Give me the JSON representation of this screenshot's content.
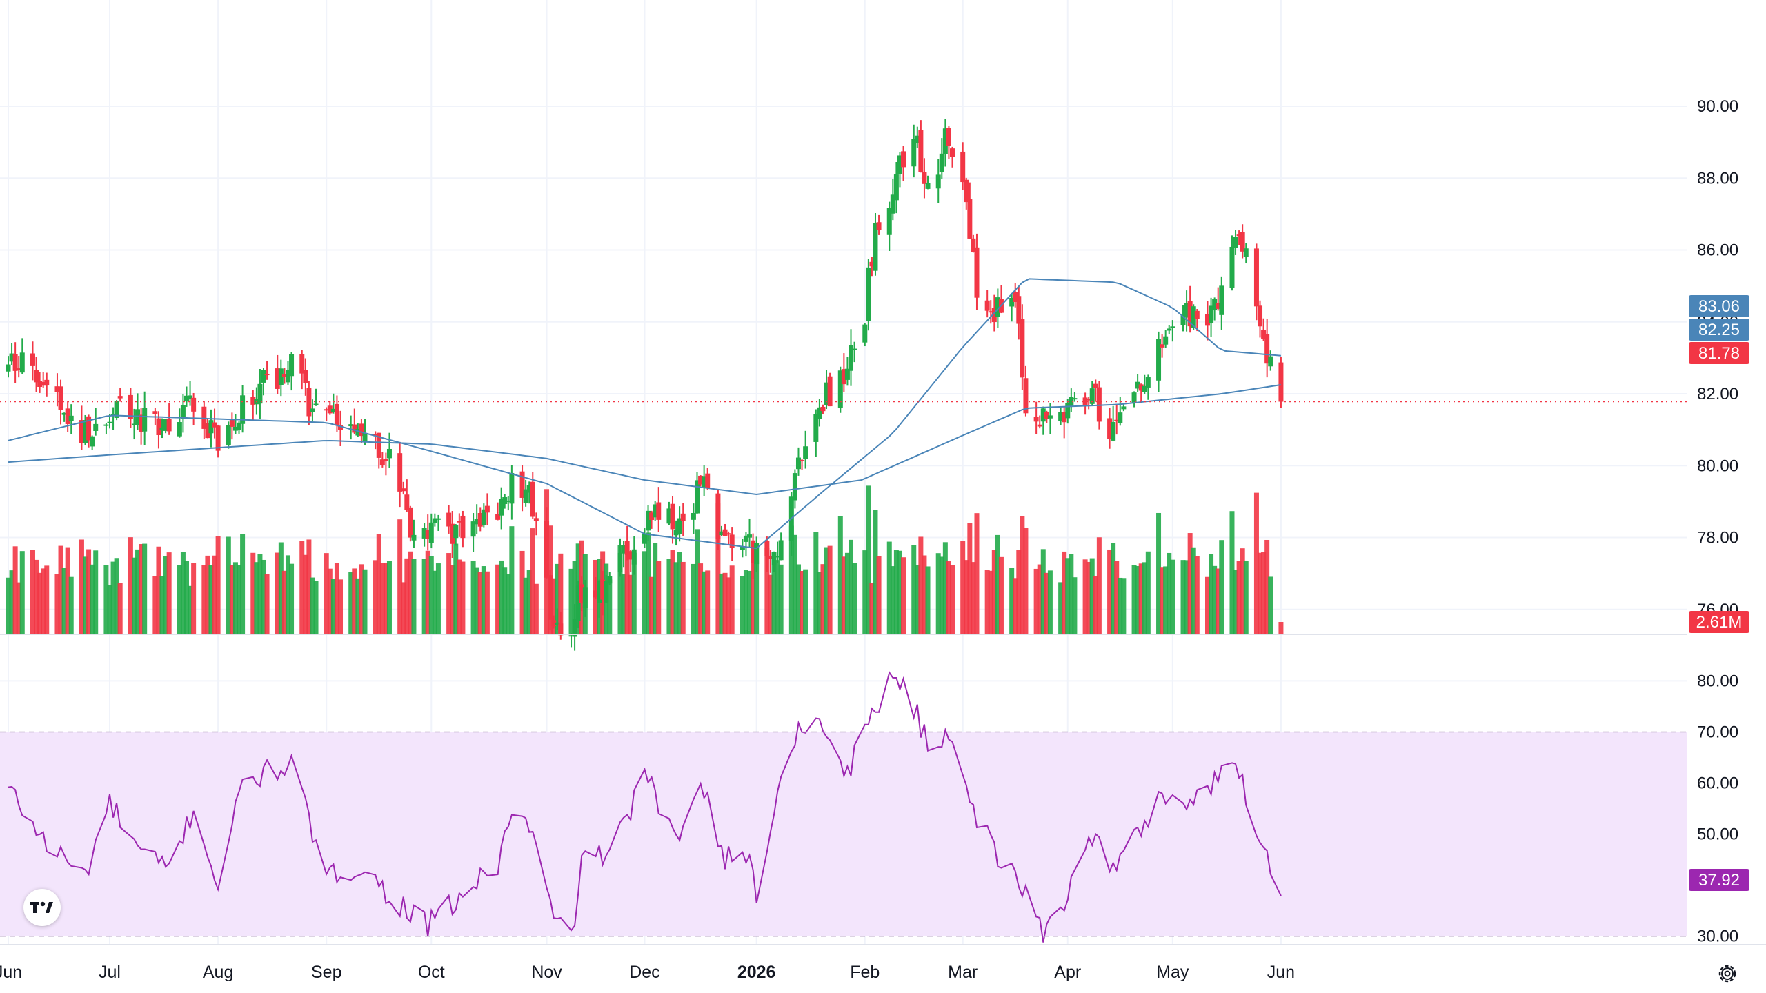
{
  "chart_data": {
    "type": "candlestick",
    "grid": true,
    "price_axis": {
      "ticks": [
        "90.00",
        "88.00",
        "86.00",
        "84.00",
        "82.00",
        "80.00",
        "78.00",
        "76.00"
      ],
      "range": [
        74.25,
        91.9
      ]
    },
    "rsi_axis": {
      "ticks": [
        "80.00",
        "70.00",
        "60.00",
        "50.00",
        "40.00",
        "30.00"
      ],
      "range": [
        27.4,
        83.7
      ],
      "band": [
        30,
        70
      ]
    },
    "x_labels": [
      {
        "label": "Jun",
        "date": "2025-06-02",
        "bold": false
      },
      {
        "label": "Jul",
        "date": "2025-07-01",
        "bold": false
      },
      {
        "label": "Aug",
        "date": "2025-08-01",
        "bold": false
      },
      {
        "label": "Sep",
        "date": "2025-09-01",
        "bold": false
      },
      {
        "label": "Oct",
        "date": "2025-10-01",
        "bold": false
      },
      {
        "label": "Nov",
        "date": "2025-11-03",
        "bold": false
      },
      {
        "label": "Dec",
        "date": "2025-12-01",
        "bold": false
      },
      {
        "label": "2026",
        "date": "2026-01-02",
        "bold": true
      },
      {
        "label": "Feb",
        "date": "2026-02-02",
        "bold": false
      },
      {
        "label": "Mar",
        "date": "2026-03-02",
        "bold": false
      },
      {
        "label": "Apr",
        "date": "2026-04-01",
        "bold": false
      },
      {
        "label": "May",
        "date": "2026-05-01",
        "bold": false
      },
      {
        "label": "Jun",
        "date": "2026-06-01",
        "bold": false
      }
    ],
    "close_path": [
      [
        "2025-06-02",
        82.9
      ],
      [
        "2025-06-10",
        82.5
      ],
      [
        "2025-06-18",
        81.4
      ],
      [
        "2025-06-26",
        80.8
      ],
      [
        "2025-07-03",
        81.9
      ],
      [
        "2025-07-10",
        81.3
      ],
      [
        "2025-07-18",
        81.2
      ],
      [
        "2025-07-25",
        81.7
      ],
      [
        "2025-08-01",
        80.6
      ],
      [
        "2025-08-08",
        81.8
      ],
      [
        "2025-08-15",
        82.3
      ],
      [
        "2025-08-22",
        82.8
      ],
      [
        "2025-08-28",
        81.6
      ],
      [
        "2025-09-05",
        81.0
      ],
      [
        "2025-09-12",
        80.9
      ],
      [
        "2025-09-19",
        80.2
      ],
      [
        "2025-09-26",
        78.0
      ],
      [
        "2025-10-03",
        78.2
      ],
      [
        "2025-10-10",
        78.1
      ],
      [
        "2025-10-17",
        78.5
      ],
      [
        "2025-10-24",
        79.5
      ],
      [
        "2025-10-29",
        79.3
      ],
      [
        "2025-11-05",
        75.5
      ],
      [
        "2025-11-10",
        75.7
      ],
      [
        "2025-11-14",
        76.8
      ],
      [
        "2025-11-20",
        76.7
      ],
      [
        "2025-11-27",
        77.8
      ],
      [
        "2025-12-04",
        78.6
      ],
      [
        "2025-12-11",
        78.2
      ],
      [
        "2025-12-17",
        79.5
      ],
      [
        "2025-12-24",
        77.9
      ],
      [
        "2025-12-31",
        77.8
      ],
      [
        "2026-01-06",
        77.1
      ],
      [
        "2026-01-12",
        79.5
      ],
      [
        "2026-01-19",
        81.6
      ],
      [
        "2026-01-26",
        82.3
      ],
      [
        "2026-02-02",
        84.2
      ],
      [
        "2026-02-05",
        86.8
      ],
      [
        "2026-02-10",
        87.8
      ],
      [
        "2026-02-16",
        89.4
      ],
      [
        "2026-02-20",
        87.6
      ],
      [
        "2026-02-26",
        89.3
      ],
      [
        "2026-03-02",
        88.0
      ],
      [
        "2026-03-06",
        84.8
      ],
      [
        "2026-03-12",
        84.3
      ],
      [
        "2026-03-17",
        84.9
      ],
      [
        "2026-03-20",
        81.9
      ],
      [
        "2026-03-26",
        81.0
      ],
      [
        "2026-04-01",
        81.6
      ],
      [
        "2026-04-07",
        82.2
      ],
      [
        "2026-04-13",
        80.9
      ],
      [
        "2026-04-17",
        81.6
      ],
      [
        "2026-04-23",
        82.6
      ],
      [
        "2026-04-29",
        83.3
      ],
      [
        "2026-05-05",
        84.2
      ],
      [
        "2026-05-11",
        84.1
      ],
      [
        "2026-05-15",
        85.0
      ],
      [
        "2026-05-20",
        86.2
      ],
      [
        "2026-05-25",
        84.8
      ],
      [
        "2026-05-28",
        83.1
      ],
      [
        "2026-06-01",
        81.78
      ]
    ],
    "ma_series": [
      {
        "label": "83.06",
        "color": "#4a85b8",
        "points": [
          [
            "2025-06-02",
            80.7
          ],
          [
            "2025-07-01",
            81.4
          ],
          [
            "2025-08-01",
            81.3
          ],
          [
            "2025-09-01",
            81.2
          ],
          [
            "2025-10-01",
            80.4
          ],
          [
            "2025-11-03",
            79.5
          ],
          [
            "2025-12-01",
            78.1
          ],
          [
            "2026-01-02",
            77.7
          ],
          [
            "2026-01-20",
            79.2
          ],
          [
            "2026-02-10",
            80.9
          ],
          [
            "2026-03-02",
            83.3
          ],
          [
            "2026-03-20",
            85.2
          ],
          [
            "2026-04-15",
            85.1
          ],
          [
            "2026-05-01",
            84.4
          ],
          [
            "2026-05-15",
            83.2
          ],
          [
            "2026-06-01",
            83.06
          ]
        ]
      },
      {
        "label": "82.25",
        "color": "#4a85b8",
        "points": [
          [
            "2025-06-02",
            80.1
          ],
          [
            "2025-07-01",
            80.3
          ],
          [
            "2025-08-01",
            80.5
          ],
          [
            "2025-09-01",
            80.7
          ],
          [
            "2025-10-01",
            80.6
          ],
          [
            "2025-11-03",
            80.2
          ],
          [
            "2025-12-01",
            79.6
          ],
          [
            "2026-01-02",
            79.2
          ],
          [
            "2026-02-01",
            79.6
          ],
          [
            "2026-03-01",
            80.8
          ],
          [
            "2026-03-20",
            81.6
          ],
          [
            "2026-04-15",
            81.7
          ],
          [
            "2026-05-15",
            82.0
          ],
          [
            "2026-06-01",
            82.25
          ]
        ]
      }
    ],
    "last_price": {
      "label": "81.78",
      "value": 81.78,
      "color": "#f23645"
    },
    "volume": {
      "label": "2.61M",
      "color": "#f23645"
    },
    "rsi": {
      "last_label": "37.92",
      "color": "#9c27b0",
      "points": [
        [
          "2025-06-02",
          59
        ],
        [
          "2025-06-13",
          48
        ],
        [
          "2025-06-24",
          42
        ],
        [
          "2025-07-01",
          56
        ],
        [
          "2025-07-10",
          46
        ],
        [
          "2025-07-18",
          43
        ],
        [
          "2025-07-25",
          55
        ],
        [
          "2025-08-01",
          40
        ],
        [
          "2025-08-08",
          60
        ],
        [
          "2025-08-15",
          62
        ],
        [
          "2025-08-22",
          64
        ],
        [
          "2025-09-01",
          41
        ],
        [
          "2025-09-10",
          44
        ],
        [
          "2025-09-19",
          38
        ],
        [
          "2025-09-30",
          32
        ],
        [
          "2025-10-10",
          38
        ],
        [
          "2025-10-20",
          44
        ],
        [
          "2025-10-24",
          55
        ],
        [
          "2025-10-30",
          50
        ],
        [
          "2025-11-05",
          33
        ],
        [
          "2025-11-10",
          30
        ],
        [
          "2025-11-14",
          48
        ],
        [
          "2025-11-21",
          45
        ],
        [
          "2025-12-01",
          62
        ],
        [
          "2025-12-10",
          48
        ],
        [
          "2025-12-17",
          62
        ],
        [
          "2025-12-24",
          45
        ],
        [
          "2025-12-31",
          46
        ],
        [
          "2026-01-02",
          37
        ],
        [
          "2026-01-06",
          52
        ],
        [
          "2026-01-14",
          72
        ],
        [
          "2026-01-21",
          71
        ],
        [
          "2026-01-28",
          62
        ],
        [
          "2026-02-02",
          70
        ],
        [
          "2026-02-09",
          81
        ],
        [
          "2026-02-14",
          79
        ],
        [
          "2026-02-20",
          67
        ],
        [
          "2026-02-27",
          70
        ],
        [
          "2026-03-06",
          53
        ],
        [
          "2026-03-12",
          46
        ],
        [
          "2026-03-20",
          38
        ],
        [
          "2026-03-25",
          31
        ],
        [
          "2026-04-01",
          38
        ],
        [
          "2026-04-07",
          51
        ],
        [
          "2026-04-14",
          43
        ],
        [
          "2026-04-21",
          50
        ],
        [
          "2026-04-28",
          58
        ],
        [
          "2026-05-05",
          56
        ],
        [
          "2026-05-12",
          59
        ],
        [
          "2026-05-19",
          65
        ],
        [
          "2026-05-25",
          51
        ],
        [
          "2026-06-01",
          37.92
        ]
      ]
    }
  },
  "colors": {
    "up": "#22ab4a",
    "down": "#f23645",
    "grid": "#f0f3fa",
    "axis_text": "#131722",
    "rsi_band": "#f3e5fc"
  },
  "icons": {
    "logo": "tradingview-logo-icon",
    "settings": "gear-icon"
  }
}
